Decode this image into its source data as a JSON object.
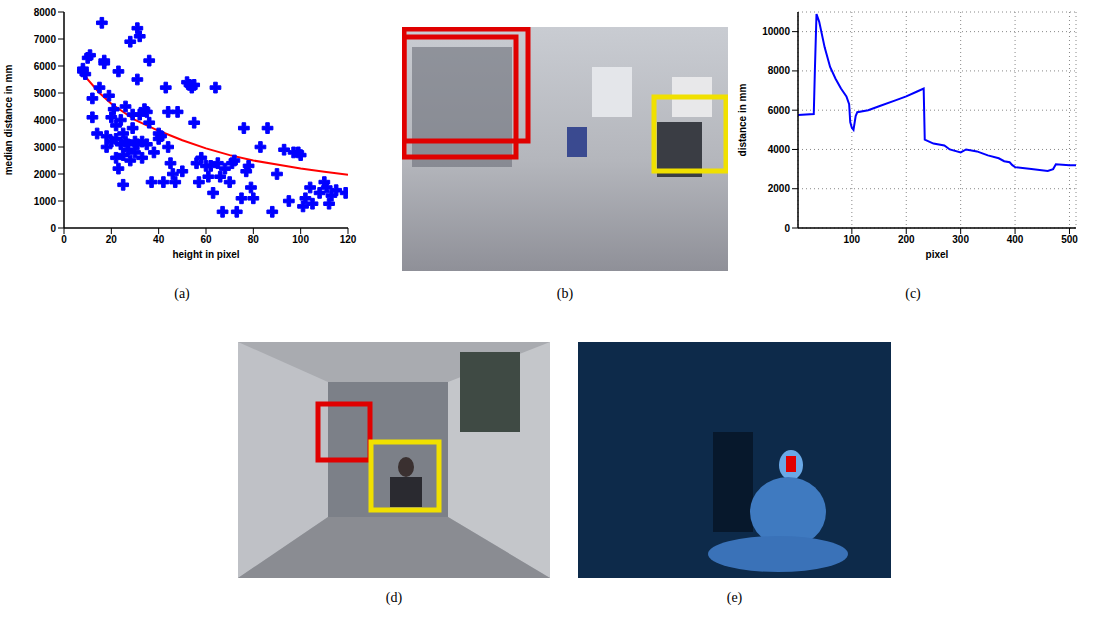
{
  "panel_labels": [
    "(a)",
    "(b)",
    "(c)",
    "(d)",
    "(e)"
  ],
  "chart_data": [
    {
      "type": "scatter",
      "x_label": "height in pixel",
      "y_label": "median distance in mm",
      "xlim": [
        0,
        120
      ],
      "xticks": [
        0,
        20,
        40,
        60,
        80,
        100,
        120
      ],
      "ylim": [
        0,
        8000
      ],
      "yticks": [
        0,
        1000,
        2000,
        3000,
        4000,
        5000,
        6000,
        7000,
        8000
      ],
      "grid": false,
      "series": [
        {
          "type": "scatter",
          "color": "#0000ff",
          "marker": "plus",
          "x": [
            8,
            8,
            9,
            10,
            11,
            12,
            12,
            14,
            15,
            16,
            17,
            17,
            18,
            18,
            19,
            20,
            20,
            21,
            22,
            22,
            22,
            23,
            23,
            24,
            24,
            25,
            25,
            25,
            26,
            26,
            27,
            27,
            28,
            28,
            29,
            29,
            30,
            30,
            31,
            31,
            31,
            32,
            32,
            33,
            33,
            34,
            35,
            35,
            36,
            36,
            37,
            38,
            40,
            40,
            41,
            42,
            43,
            44,
            44,
            45,
            46,
            47,
            48,
            50,
            52,
            53,
            54,
            55,
            55,
            56,
            57,
            58,
            60,
            61,
            62,
            63,
            64,
            65,
            66,
            67,
            68,
            70,
            71,
            72,
            73,
            75,
            76,
            77,
            78,
            79,
            80,
            83,
            86,
            88,
            90,
            93,
            95,
            97,
            99,
            100,
            101,
            102,
            104,
            105,
            108,
            110,
            111,
            112,
            113,
            115,
            119
          ],
          "values": [
            5800,
            5900,
            5700,
            6300,
            6400,
            4100,
            4800,
            3500,
            5200,
            7600,
            6200,
            6100,
            3400,
            3000,
            4900,
            4100,
            3200,
            4400,
            3800,
            3300,
            2600,
            2200,
            5800,
            4000,
            3100,
            3500,
            2700,
            1600,
            4500,
            3200,
            3100,
            2900,
            6900,
            2500,
            4200,
            3700,
            3200,
            2800,
            7400,
            5500,
            3100,
            7100,
            4200,
            3200,
            2600,
            4400,
            4300,
            3100,
            6200,
            3900,
            1700,
            2800,
            3500,
            3300,
            3400,
            1700,
            5200,
            4300,
            3000,
            2400,
            2000,
            1700,
            4300,
            2100,
            5400,
            5300,
            5200,
            5300,
            3900,
            2400,
            1700,
            2600,
            2300,
            1900,
            2300,
            1300,
            5200,
            2400,
            1900,
            600,
            2200,
            1700,
            2400,
            2500,
            600,
            1100,
            3700,
            2100,
            2300,
            1500,
            1100,
            3000,
            3700,
            600,
            2000,
            2900,
            1000,
            2800,
            2800,
            2700,
            800,
            1100,
            1500,
            900,
            1300,
            1700,
            1500,
            900,
            1200,
            1400,
            1300
          ]
        },
        {
          "type": "line",
          "color": "#ff0000",
          "x": [
            8,
            10,
            15,
            20,
            30,
            40,
            50,
            60,
            70,
            80,
            90,
            100,
            110,
            120
          ],
          "values": [
            5800,
            5500,
            5000,
            4600,
            4000,
            3600,
            3250,
            2950,
            2700,
            2500,
            2350,
            2200,
            2080,
            1970
          ]
        }
      ]
    },
    {
      "type": "line",
      "x_label": "pixel",
      "y_label": "distance in mm",
      "xlim": [
        1,
        512
      ],
      "xticks": [
        100,
        200,
        300,
        400,
        500
      ],
      "ylim": [
        0,
        11000
      ],
      "yticks": [
        0,
        2000,
        4000,
        6000,
        8000,
        10000
      ],
      "grid": true,
      "series": [
        {
          "type": "line",
          "color": "#0000ff",
          "x": [
            1,
            30,
            32,
            35,
            40,
            50,
            60,
            70,
            80,
            90,
            95,
            97,
            100,
            103,
            107,
            110,
            130,
            150,
            180,
            200,
            220,
            232,
            234,
            250,
            270,
            280,
            300,
            310,
            330,
            350,
            370,
            380,
            390,
            395,
            400,
            430,
            460,
            470,
            475,
            500,
            512
          ],
          "values": [
            5750,
            5800,
            8000,
            10900,
            10500,
            9200,
            8200,
            7600,
            7100,
            6700,
            6300,
            5400,
            5100,
            5000,
            5700,
            5900,
            6000,
            6200,
            6500,
            6700,
            6950,
            7100,
            4500,
            4300,
            4200,
            4000,
            3850,
            4000,
            3900,
            3700,
            3550,
            3400,
            3350,
            3200,
            3100,
            3000,
            2900,
            3000,
            3250,
            3200,
            3200
          ]
        }
      ]
    }
  ]
}
